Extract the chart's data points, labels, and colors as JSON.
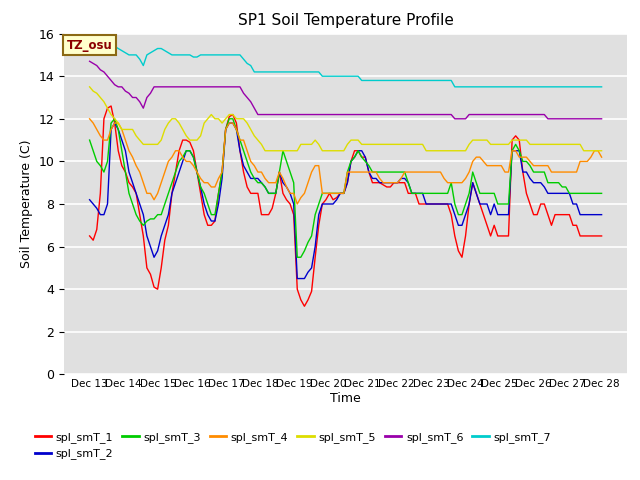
{
  "title": "SP1 Soil Temperature Profile",
  "xlabel": "Time",
  "ylabel": "Soil Temperature (C)",
  "ylim": [
    0,
    16
  ],
  "yticks": [
    0,
    2,
    4,
    6,
    8,
    10,
    12,
    14,
    16
  ],
  "annotation": "TZ_osu",
  "annotation_color": "#8B0000",
  "annotation_bg": "#FFFFCC",
  "annotation_border": "#8B6914",
  "background_color": "#E0E0E0",
  "series_colors": {
    "spl_smT_1": "#FF0000",
    "spl_smT_2": "#0000CC",
    "spl_smT_3": "#00CC00",
    "spl_smT_4": "#FF8C00",
    "spl_smT_5": "#DDDD00",
    "spl_smT_6": "#9900AA",
    "spl_smT_7": "#00CCCC"
  },
  "x_tick_labels": [
    "Dec 13",
    "Dec 14",
    "Dec 15",
    "Dec 16",
    "Dec 17",
    "Dec 18",
    "Dec 19",
    "Dec 20",
    "Dec 21",
    "Dec 22",
    "Dec 23",
    "Dec 24",
    "Dec 25",
    "Dec 26",
    "Dec 27",
    "Dec 28"
  ],
  "spl_smT_1": [
    6.5,
    6.3,
    6.8,
    8.5,
    12.0,
    12.5,
    12.6,
    11.8,
    10.5,
    9.8,
    9.5,
    9.0,
    8.8,
    8.5,
    7.5,
    6.5,
    5.0,
    4.7,
    4.1,
    4.0,
    5.0,
    6.3,
    7.0,
    8.5,
    9.5,
    10.5,
    11.0,
    11.0,
    10.9,
    10.5,
    9.5,
    8.5,
    7.5,
    7.0,
    7.0,
    7.2,
    8.5,
    9.5,
    11.5,
    12.1,
    12.2,
    11.8,
    10.5,
    9.5,
    8.8,
    8.5,
    8.5,
    8.5,
    7.5,
    7.5,
    7.5,
    7.8,
    8.5,
    9.5,
    8.5,
    8.2,
    8.0,
    7.5,
    4.0,
    3.5,
    3.2,
    3.5,
    3.9,
    5.5,
    7.0,
    8.0,
    8.2,
    8.5,
    8.2,
    8.3,
    8.5,
    8.5,
    9.0,
    10.0,
    10.5,
    10.5,
    10.2,
    10.2,
    9.5,
    9.0,
    9.0,
    9.0,
    8.9,
    8.8,
    8.8,
    9.0,
    9.0,
    9.0,
    9.0,
    8.5,
    8.5,
    8.5,
    8.0,
    8.0,
    8.0,
    8.0,
    8.0,
    8.0,
    8.0,
    8.0,
    8.0,
    7.5,
    6.5,
    5.8,
    5.5,
    6.5,
    8.0,
    9.0,
    8.5,
    8.0,
    7.5,
    7.0,
    6.5,
    7.0,
    6.5,
    6.5,
    6.5,
    6.5,
    11.0,
    11.2,
    11.0,
    9.5,
    8.5,
    8.0,
    7.5,
    7.5,
    8.0,
    8.0,
    7.5,
    7.0,
    7.5,
    7.5,
    7.5,
    7.5,
    7.5,
    7.0,
    7.0,
    6.5,
    6.5,
    6.5,
    6.5,
    6.5,
    6.5,
    6.5
  ],
  "spl_smT_2": [
    8.2,
    8.0,
    7.8,
    7.5,
    7.5,
    8.0,
    11.5,
    11.8,
    11.5,
    11.0,
    10.5,
    9.5,
    9.0,
    8.5,
    8.0,
    7.5,
    6.5,
    6.0,
    5.5,
    5.8,
    6.5,
    7.0,
    7.5,
    8.5,
    9.0,
    9.5,
    10.0,
    10.5,
    10.5,
    10.2,
    9.5,
    8.8,
    8.0,
    7.5,
    7.2,
    7.2,
    8.0,
    9.2,
    11.5,
    11.8,
    11.8,
    11.5,
    10.5,
    9.8,
    9.5,
    9.2,
    9.2,
    9.2,
    9.0,
    8.8,
    8.5,
    8.5,
    8.5,
    9.5,
    9.0,
    8.8,
    8.5,
    8.0,
    4.5,
    4.5,
    4.5,
    4.8,
    5.0,
    6.0,
    7.5,
    8.0,
    8.0,
    8.0,
    8.0,
    8.2,
    8.5,
    8.5,
    9.0,
    10.0,
    10.2,
    10.5,
    10.5,
    10.2,
    9.5,
    9.2,
    9.2,
    9.0,
    9.0,
    9.0,
    9.0,
    9.0,
    9.0,
    9.2,
    9.2,
    9.0,
    8.5,
    8.5,
    8.5,
    8.5,
    8.0,
    8.0,
    8.0,
    8.0,
    8.0,
    8.0,
    8.0,
    8.0,
    7.5,
    7.0,
    7.0,
    7.5,
    8.0,
    9.0,
    8.5,
    8.0,
    8.0,
    8.0,
    7.5,
    8.0,
    7.5,
    7.5,
    7.5,
    7.5,
    10.5,
    10.5,
    10.5,
    9.5,
    9.5,
    9.2,
    9.0,
    9.0,
    9.0,
    8.8,
    8.5,
    8.5,
    8.5,
    8.5,
    8.5,
    8.5,
    8.5,
    8.0,
    8.0,
    7.5,
    7.5,
    7.5,
    7.5,
    7.5,
    7.5,
    7.5
  ],
  "spl_smT_3": [
    11.0,
    10.5,
    10.0,
    9.8,
    9.5,
    10.0,
    11.8,
    12.0,
    11.5,
    10.5,
    9.5,
    8.5,
    8.0,
    7.5,
    7.2,
    7.0,
    7.2,
    7.3,
    7.3,
    7.5,
    7.5,
    8.0,
    8.5,
    9.0,
    9.5,
    10.0,
    10.2,
    10.5,
    10.5,
    10.2,
    9.5,
    8.8,
    8.5,
    8.0,
    7.5,
    7.5,
    8.5,
    9.5,
    11.5,
    12.0,
    12.0,
    11.5,
    11.0,
    10.5,
    10.0,
    9.5,
    9.2,
    9.0,
    9.0,
    8.8,
    8.5,
    8.5,
    8.5,
    9.5,
    10.5,
    10.0,
    9.5,
    9.0,
    5.5,
    5.5,
    5.8,
    6.2,
    6.5,
    7.5,
    8.0,
    8.5,
    8.5,
    8.5,
    8.5,
    8.5,
    8.5,
    8.5,
    9.5,
    10.0,
    10.2,
    10.5,
    10.2,
    10.0,
    9.8,
    9.5,
    9.5,
    9.5,
    9.5,
    9.5,
    9.5,
    9.5,
    9.5,
    9.5,
    9.5,
    9.0,
    8.5,
    8.5,
    8.5,
    8.5,
    8.5,
    8.5,
    8.5,
    8.5,
    8.5,
    8.5,
    8.5,
    9.0,
    8.0,
    7.5,
    7.5,
    8.0,
    8.5,
    9.5,
    9.0,
    8.5,
    8.5,
    8.5,
    8.5,
    8.5,
    8.0,
    8.0,
    8.0,
    8.0,
    10.5,
    10.8,
    10.5,
    10.0,
    10.0,
    9.8,
    9.5,
    9.5,
    9.5,
    9.5,
    9.0,
    9.0,
    9.0,
    9.0,
    8.8,
    8.8,
    8.5,
    8.5,
    8.5,
    8.5,
    8.5,
    8.5,
    8.5,
    8.5,
    8.5,
    8.5
  ],
  "spl_smT_4": [
    12.0,
    11.8,
    11.5,
    11.2,
    11.0,
    11.0,
    11.5,
    11.8,
    11.8,
    11.5,
    11.0,
    10.5,
    10.2,
    9.8,
    9.5,
    9.0,
    8.5,
    8.5,
    8.2,
    8.5,
    9.0,
    9.5,
    10.0,
    10.2,
    10.5,
    10.5,
    10.2,
    10.0,
    10.0,
    9.8,
    9.5,
    9.2,
    9.0,
    9.0,
    8.8,
    8.8,
    9.2,
    9.5,
    11.5,
    11.8,
    11.8,
    11.5,
    11.0,
    11.0,
    10.5,
    10.0,
    9.8,
    9.5,
    9.5,
    9.2,
    9.0,
    9.0,
    9.0,
    9.5,
    9.2,
    8.8,
    8.5,
    8.5,
    8.0,
    8.3,
    8.5,
    9.0,
    9.5,
    9.8,
    9.8,
    8.5,
    8.5,
    8.5,
    8.5,
    8.5,
    8.5,
    8.5,
    9.5,
    9.5,
    9.5,
    9.5,
    9.5,
    9.5,
    9.5,
    9.5,
    9.5,
    9.2,
    9.0,
    9.0,
    9.0,
    9.0,
    9.0,
    9.2,
    9.5,
    9.5,
    9.5,
    9.5,
    9.5,
    9.5,
    9.5,
    9.5,
    9.5,
    9.5,
    9.5,
    9.2,
    9.0,
    9.0,
    9.0,
    9.0,
    9.0,
    9.2,
    9.5,
    10.0,
    10.2,
    10.2,
    10.0,
    9.8,
    9.8,
    9.8,
    9.8,
    9.8,
    9.5,
    9.5,
    10.5,
    10.5,
    10.2,
    10.2,
    10.2,
    10.0,
    9.8,
    9.8,
    9.8,
    9.8,
    9.8,
    9.5,
    9.5,
    9.5,
    9.5,
    9.5,
    9.5,
    9.5,
    9.5,
    10.0,
    10.0,
    10.0,
    10.2,
    10.5,
    10.5,
    10.2
  ],
  "spl_smT_5": [
    13.5,
    13.3,
    13.2,
    13.0,
    12.8,
    12.5,
    12.2,
    12.0,
    11.8,
    11.5,
    11.5,
    11.5,
    11.5,
    11.2,
    11.0,
    10.8,
    10.8,
    10.8,
    10.8,
    10.8,
    11.0,
    11.5,
    11.8,
    12.0,
    12.0,
    11.8,
    11.5,
    11.2,
    11.0,
    11.0,
    11.0,
    11.2,
    11.8,
    12.0,
    12.2,
    12.0,
    12.0,
    11.8,
    12.0,
    12.2,
    12.2,
    12.0,
    12.0,
    12.0,
    11.8,
    11.5,
    11.2,
    11.0,
    10.8,
    10.5,
    10.5,
    10.5,
    10.5,
    10.5,
    10.5,
    10.5,
    10.5,
    10.5,
    10.5,
    10.8,
    10.8,
    10.8,
    10.8,
    11.0,
    10.8,
    10.5,
    10.5,
    10.5,
    10.5,
    10.5,
    10.5,
    10.5,
    10.8,
    11.0,
    11.0,
    11.0,
    10.8,
    10.8,
    10.8,
    10.8,
    10.8,
    10.8,
    10.8,
    10.8,
    10.8,
    10.8,
    10.8,
    10.8,
    10.8,
    10.8,
    10.8,
    10.8,
    10.8,
    10.8,
    10.5,
    10.5,
    10.5,
    10.5,
    10.5,
    10.5,
    10.5,
    10.5,
    10.5,
    10.5,
    10.5,
    10.5,
    10.8,
    11.0,
    11.0,
    11.0,
    11.0,
    11.0,
    10.8,
    10.8,
    10.8,
    10.8,
    10.8,
    10.8,
    11.0,
    11.0,
    11.0,
    11.0,
    11.0,
    10.8,
    10.8,
    10.8,
    10.8,
    10.8,
    10.8,
    10.8,
    10.8,
    10.8,
    10.8,
    10.8,
    10.8,
    10.8,
    10.8,
    10.8,
    10.5,
    10.5,
    10.5,
    10.5,
    10.5,
    10.5
  ],
  "spl_smT_6": [
    14.7,
    14.6,
    14.5,
    14.3,
    14.2,
    14.0,
    13.8,
    13.6,
    13.5,
    13.5,
    13.3,
    13.2,
    13.0,
    13.0,
    12.8,
    12.5,
    13.0,
    13.2,
    13.5,
    13.5,
    13.5,
    13.5,
    13.5,
    13.5,
    13.5,
    13.5,
    13.5,
    13.5,
    13.5,
    13.5,
    13.5,
    13.5,
    13.5,
    13.5,
    13.5,
    13.5,
    13.5,
    13.5,
    13.5,
    13.5,
    13.5,
    13.5,
    13.5,
    13.2,
    13.0,
    12.8,
    12.5,
    12.2,
    12.2,
    12.2,
    12.2,
    12.2,
    12.2,
    12.2,
    12.2,
    12.2,
    12.2,
    12.2,
    12.2,
    12.2,
    12.2,
    12.2,
    12.2,
    12.2,
    12.2,
    12.2,
    12.2,
    12.2,
    12.2,
    12.2,
    12.2,
    12.2,
    12.2,
    12.2,
    12.2,
    12.2,
    12.2,
    12.2,
    12.2,
    12.2,
    12.2,
    12.2,
    12.2,
    12.2,
    12.2,
    12.2,
    12.2,
    12.2,
    12.2,
    12.2,
    12.2,
    12.2,
    12.2,
    12.2,
    12.2,
    12.2,
    12.2,
    12.2,
    12.2,
    12.2,
    12.2,
    12.2,
    12.0,
    12.0,
    12.0,
    12.0,
    12.2,
    12.2,
    12.2,
    12.2,
    12.2,
    12.2,
    12.2,
    12.2,
    12.2,
    12.2,
    12.2,
    12.2,
    12.2,
    12.2,
    12.2,
    12.2,
    12.2,
    12.2,
    12.2,
    12.2,
    12.2,
    12.2,
    12.0,
    12.0,
    12.0,
    12.0,
    12.0,
    12.0,
    12.0,
    12.0,
    12.0,
    12.0,
    12.0,
    12.0,
    12.0,
    12.0,
    12.0,
    12.0
  ],
  "spl_smT_7": [
    16.0,
    15.9,
    15.9,
    15.8,
    15.7,
    15.6,
    15.5,
    15.4,
    15.3,
    15.2,
    15.1,
    15.0,
    15.0,
    15.0,
    14.8,
    14.5,
    15.0,
    15.1,
    15.2,
    15.3,
    15.3,
    15.2,
    15.1,
    15.0,
    15.0,
    15.0,
    15.0,
    15.0,
    15.0,
    14.9,
    14.9,
    15.0,
    15.0,
    15.0,
    15.0,
    15.0,
    15.0,
    15.0,
    15.0,
    15.0,
    15.0,
    15.0,
    15.0,
    14.8,
    14.6,
    14.5,
    14.2,
    14.2,
    14.2,
    14.2,
    14.2,
    14.2,
    14.2,
    14.2,
    14.2,
    14.2,
    14.2,
    14.2,
    14.2,
    14.2,
    14.2,
    14.2,
    14.2,
    14.2,
    14.2,
    14.0,
    14.0,
    14.0,
    14.0,
    14.0,
    14.0,
    14.0,
    14.0,
    14.0,
    14.0,
    14.0,
    13.8,
    13.8,
    13.8,
    13.8,
    13.8,
    13.8,
    13.8,
    13.8,
    13.8,
    13.8,
    13.8,
    13.8,
    13.8,
    13.8,
    13.8,
    13.8,
    13.8,
    13.8,
    13.8,
    13.8,
    13.8,
    13.8,
    13.8,
    13.8,
    13.8,
    13.8,
    13.5,
    13.5,
    13.5,
    13.5,
    13.5,
    13.5,
    13.5,
    13.5,
    13.5,
    13.5,
    13.5,
    13.5,
    13.5,
    13.5,
    13.5,
    13.5,
    13.5,
    13.5,
    13.5,
    13.5,
    13.5,
    13.5,
    13.5,
    13.5,
    13.5,
    13.5,
    13.5,
    13.5,
    13.5,
    13.5,
    13.5,
    13.5,
    13.5,
    13.5,
    13.5,
    13.5,
    13.5,
    13.5,
    13.5,
    13.5,
    13.5,
    13.5
  ]
}
